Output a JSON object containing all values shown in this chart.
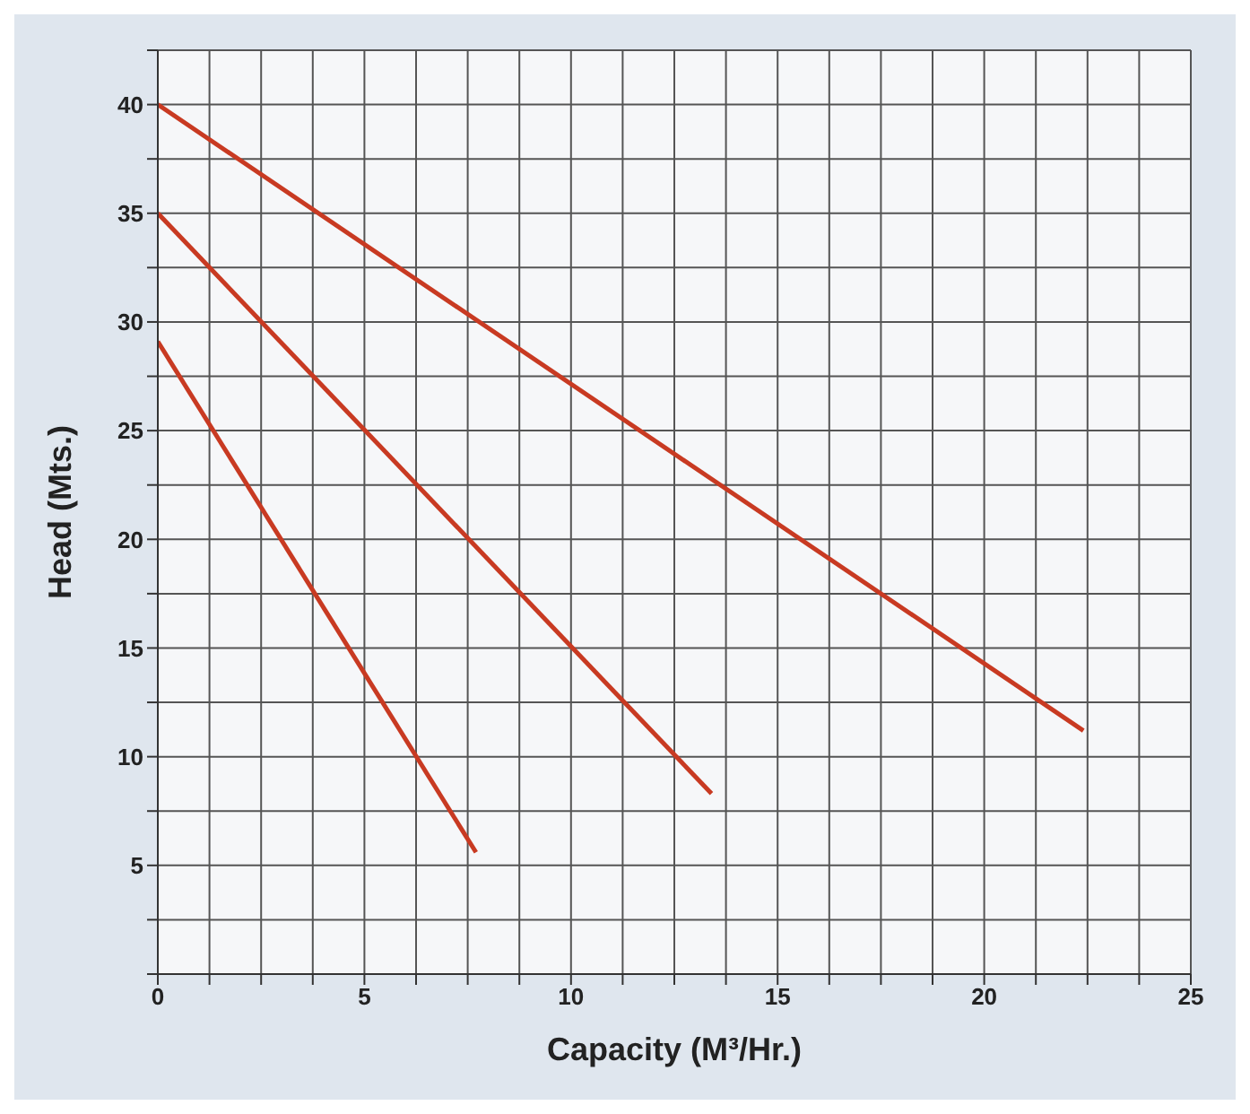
{
  "chart_data": {
    "type": "line",
    "xlabel": "Capacity (M³/Hr.)",
    "ylabel": "Head (Mts.)",
    "xlim": [
      0,
      25
    ],
    "ylim": [
      0,
      42.5
    ],
    "xticks": [
      0,
      {
        "value": 1.25,
        "label": null
      },
      {
        "value": 2.5,
        "label": null
      },
      {
        "value": 3.75,
        "label": null
      },
      5,
      {
        "value": 6.25,
        "label": null
      },
      {
        "value": 7.5,
        "label": null
      },
      {
        "value": 8.75,
        "label": null
      },
      10,
      {
        "value": 11.25,
        "label": null
      },
      {
        "value": 12.5,
        "label": null
      },
      {
        "value": 13.75,
        "label": null
      },
      15,
      {
        "value": 16.25,
        "label": null
      },
      {
        "value": 17.5,
        "label": null
      },
      {
        "value": 18.75,
        "label": null
      },
      20,
      {
        "value": 21.25,
        "label": null
      },
      {
        "value": 22.5,
        "label": null
      },
      {
        "value": 23.75,
        "label": null
      },
      25
    ],
    "yticks": [
      {
        "value": 0,
        "label": null
      },
      {
        "value": 2.5,
        "label": null
      },
      5,
      {
        "value": 7.5,
        "label": null
      },
      10,
      {
        "value": 12.5,
        "label": null
      },
      15,
      {
        "value": 17.5,
        "label": null
      },
      20,
      {
        "value": 22.5,
        "label": null
      },
      25,
      {
        "value": 27.5,
        "label": null
      },
      30,
      {
        "value": 32.5,
        "label": null
      },
      35,
      {
        "value": 37.5,
        "label": null
      },
      40,
      {
        "value": 42.5,
        "label": null
      }
    ],
    "grid": true,
    "marker": "none",
    "line_style": "solid",
    "series": [
      {
        "color": "#c83a22",
        "x": [
          0,
          22.4
        ],
        "values": [
          40,
          11.2
        ]
      },
      {
        "color": "#c83a22",
        "x": [
          0,
          13.4
        ],
        "values": [
          35,
          8.3
        ]
      },
      {
        "color": "#c83a22",
        "x": [
          0,
          7.7
        ],
        "values": [
          29.1,
          5.6
        ]
      }
    ]
  }
}
